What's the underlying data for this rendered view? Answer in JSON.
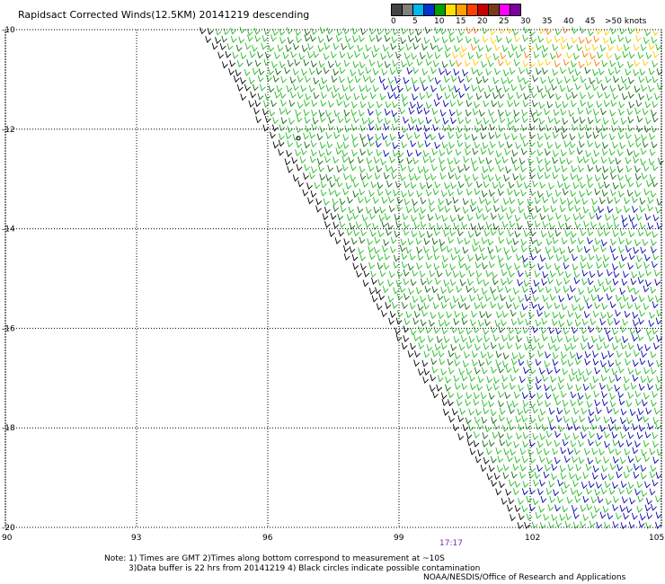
{
  "title": "Rapidsact Corrected Winds(12.5KM) 20141219 descending",
  "legend": {
    "unit_label": ">50 knots",
    "ticks": [
      "0",
      "5",
      "10",
      "15",
      "20",
      "25",
      "30",
      "35",
      "40",
      "45"
    ],
    "colors": [
      "#444444",
      "#7f7f7f",
      "#00b8f0",
      "#0033cc",
      "#00a000",
      "#ffe000",
      "#ffa000",
      "#ff4000",
      "#c80000",
      "#7a3a18",
      "#ff00ff",
      "#7a00a0"
    ]
  },
  "axes": {
    "longitude_labels": [
      "90",
      "93",
      "96",
      "99",
      "102",
      "105"
    ],
    "latitude_labels": [
      "-10",
      "-12",
      "-14",
      "-16",
      "-18",
      "-20"
    ],
    "lon_range": [
      90,
      105
    ],
    "lat_range": [
      -20,
      -10
    ],
    "grid": "dotted"
  },
  "time_label": "17:17",
  "notes": {
    "line1": "Note: 1) Times are GMT 2)Times along bottom correspond to measurement at ~10S",
    "line2": "3)Data buffer is 22 hrs from 20141219 4) Black circles indicate possible contamination"
  },
  "credit": "NOAA/NESDIS/Office of Research and Applications",
  "swath": {
    "edge_top_lon": 94.4,
    "edge_bottom_lon": 101.7,
    "edge_lat_top": -10,
    "edge_lat_bottom": -20
  },
  "map_colors": {
    "grid": "#000000",
    "barb_edge": "#000000",
    "barb_main": "#22bb22",
    "barb_strong": "#0000aa",
    "barb_dark": "#116611",
    "barb_high": "#ffcc00",
    "barb_highest": "#ff7700"
  }
}
